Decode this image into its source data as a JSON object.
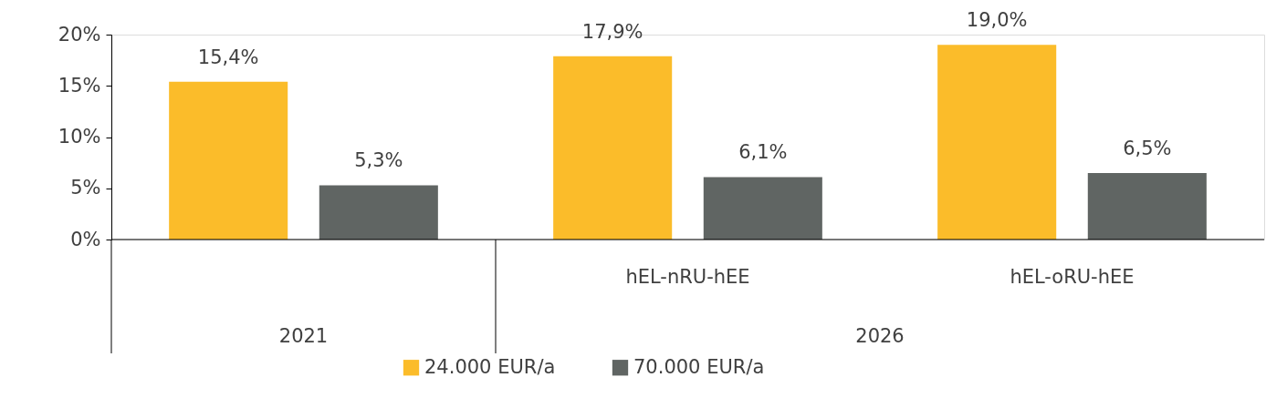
{
  "chart_data": {
    "type": "bar",
    "categories": [
      null,
      "hEL-nRU-hEE",
      "hEL-oRU-hEE"
    ],
    "series": [
      {
        "name": "24.000 EUR/a",
        "color": "#fbbc2a",
        "values": [
          15.4,
          17.9,
          19.0
        ],
        "value_labels": [
          "15,4%",
          "17,9%",
          "19,0%"
        ]
      },
      {
        "name": "70.000 EUR/a",
        "color": "#606563",
        "values": [
          5.3,
          6.1,
          6.5
        ],
        "value_labels": [
          "5,3%",
          "6,1%",
          "6,5%"
        ]
      }
    ],
    "ylim": [
      0,
      20
    ],
    "yticks": [
      {
        "value": 0,
        "label": "0%"
      },
      {
        "value": 5,
        "label": "5%"
      },
      {
        "value": 10,
        "label": "10%"
      },
      {
        "value": 15,
        "label": "15%"
      },
      {
        "value": 20,
        "label": "20%"
      }
    ],
    "annotations": [
      "2021",
      "2026"
    ],
    "grid": false,
    "legend": "bottom"
  }
}
